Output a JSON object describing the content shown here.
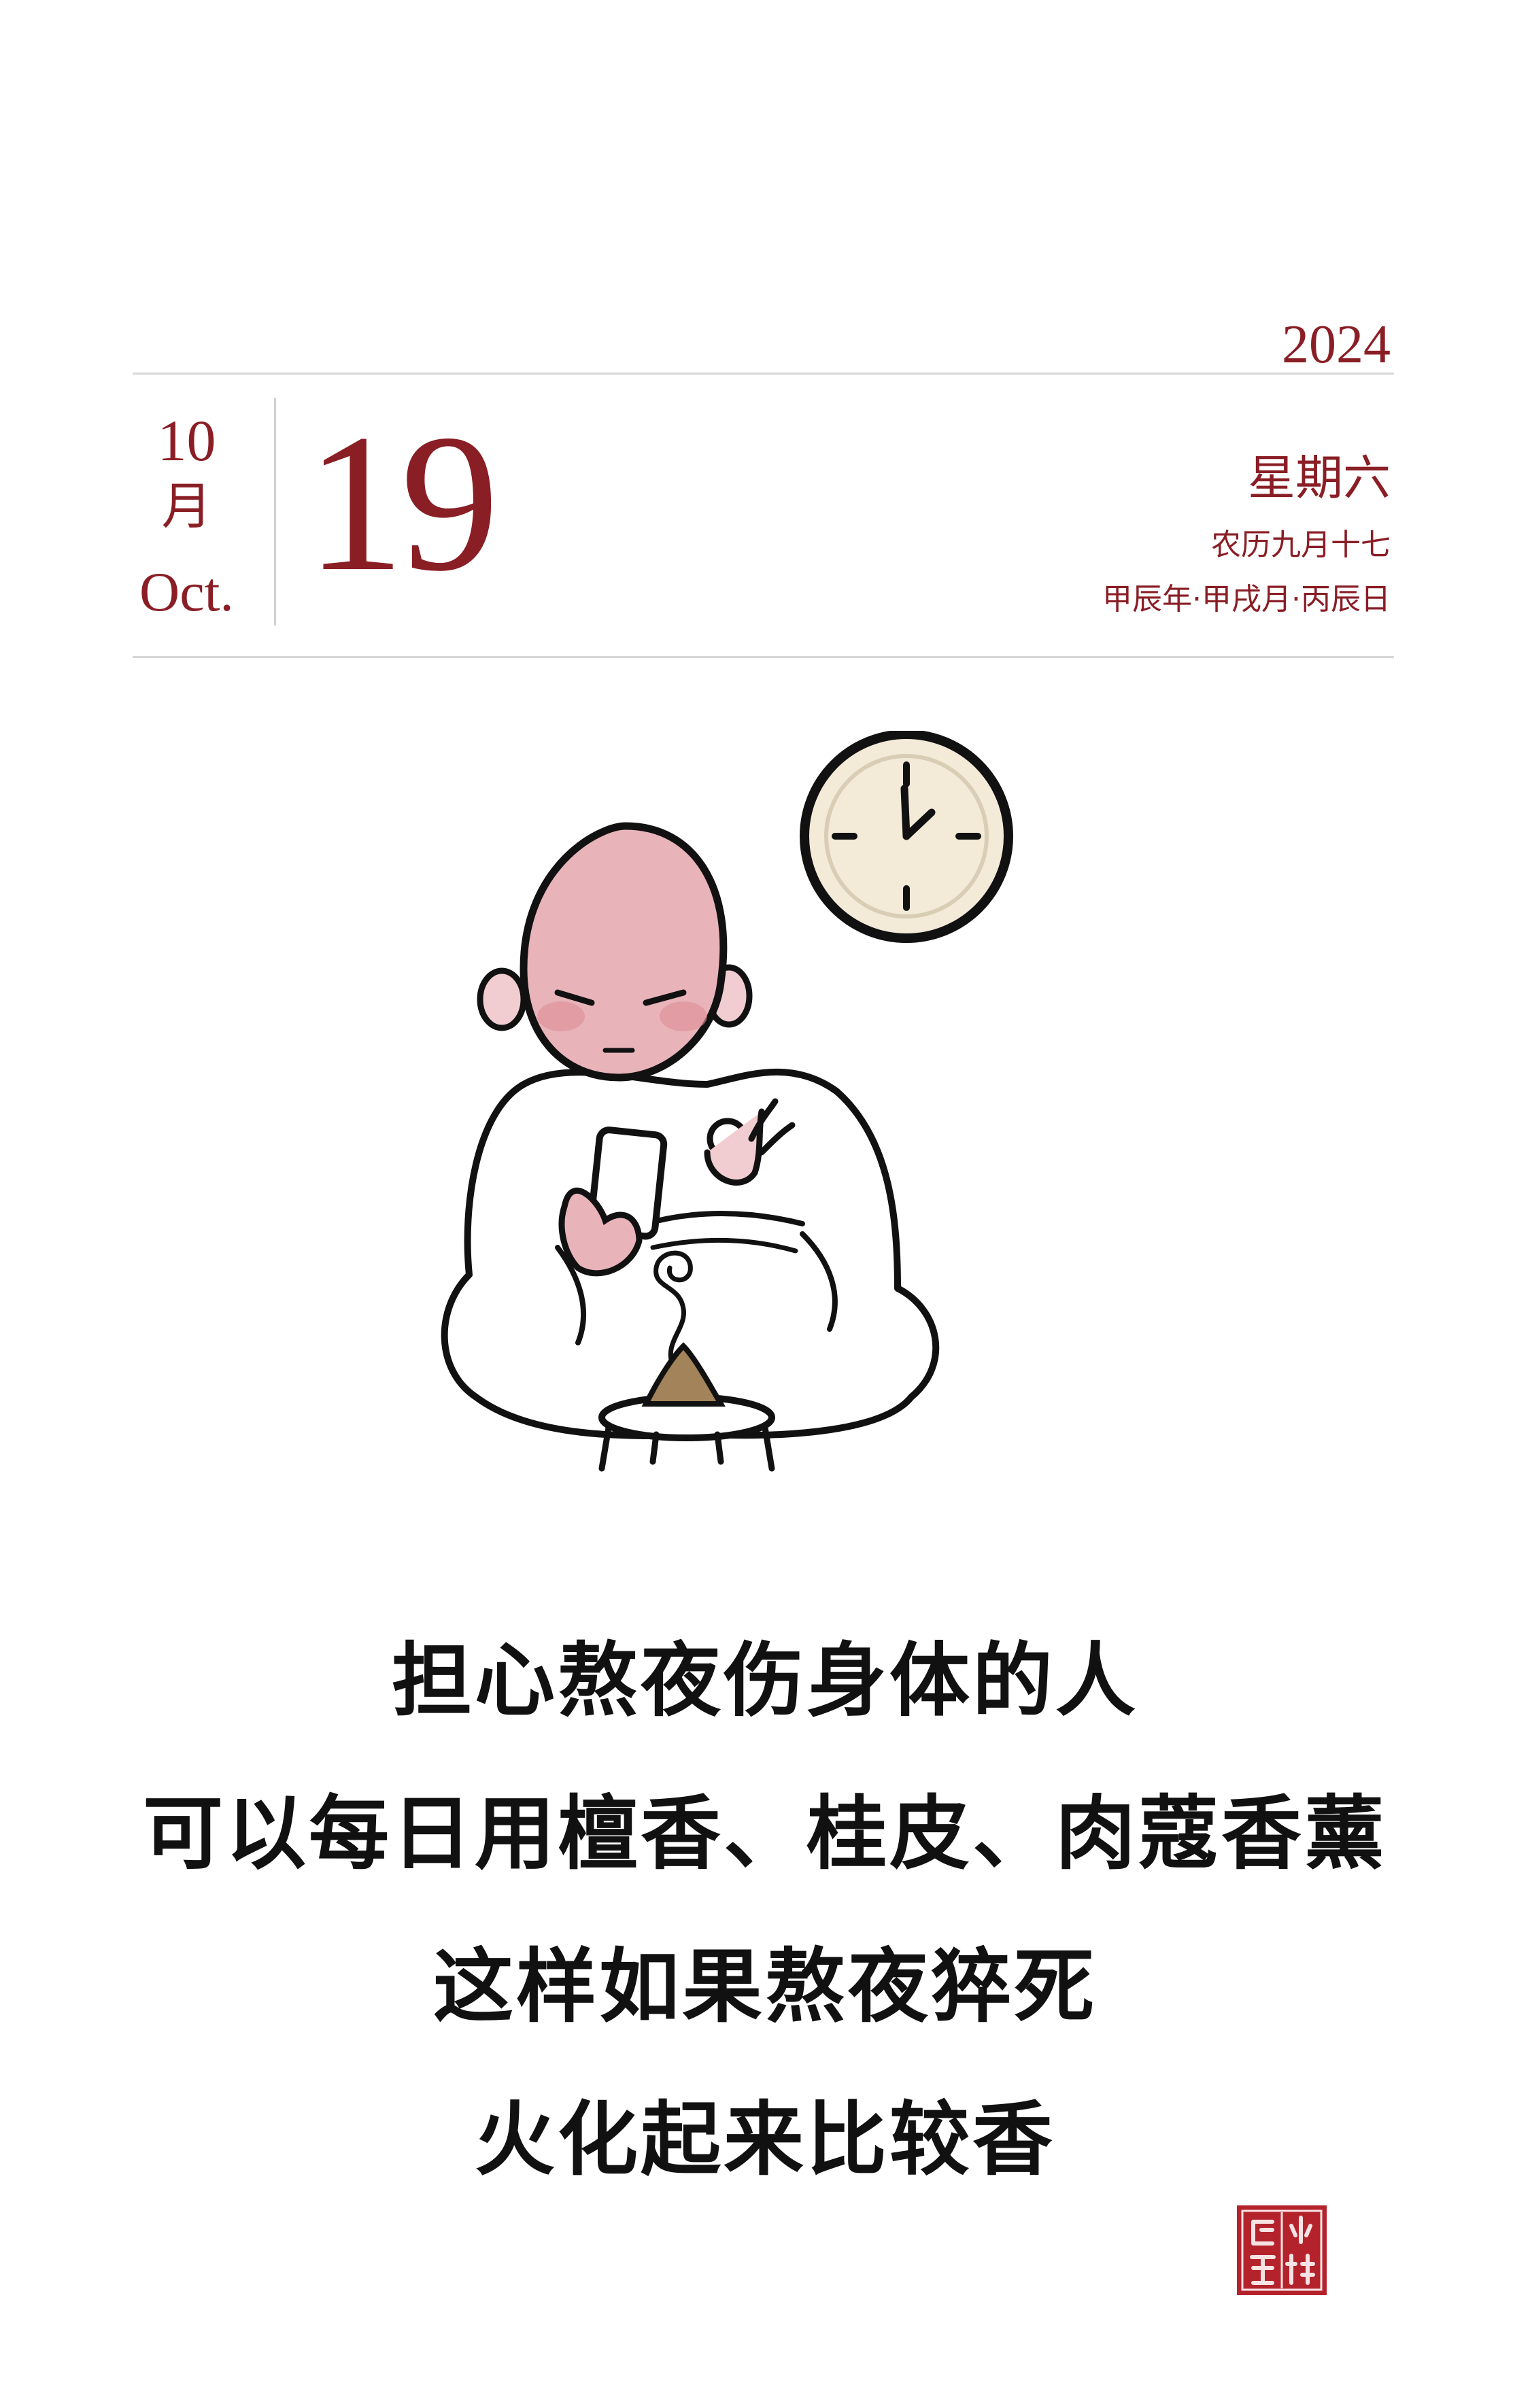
{
  "header": {
    "year": "2024",
    "month_number": "10",
    "month_char": "月",
    "month_en": "Oct.",
    "day": "19",
    "weekday": "星期六",
    "lunar_date": "农历九月十七",
    "ganzhi": "甲辰年·甲戌月·丙辰日"
  },
  "quote": {
    "lines": [
      "担心熬夜伤身体的人",
      "可以每日用檀香、桂皮、肉蔻香薰",
      "这样如果熬夜猝死",
      "火化起来比较香"
    ]
  },
  "seal": {
    "text": "小林漫画"
  },
  "colors": {
    "accent": "#8a1e25",
    "rule": "#d7d7d7",
    "text": "#111111",
    "clock_face": "#f3ead8",
    "monk_head": "#e8b4ba"
  },
  "icons": {
    "clock": "wall-clock-icon",
    "monk": "monk-illustration",
    "incense": "incense-burner-icon"
  }
}
